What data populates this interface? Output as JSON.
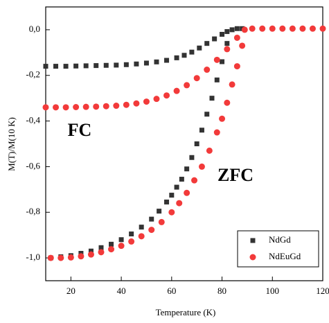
{
  "chart_data": {
    "type": "scatter",
    "x_label": "Temperature (K)",
    "y_label": "M(T)/M(10 K)",
    "annotations": [
      "FC",
      "ZFC"
    ],
    "xlim": [
      10,
      120
    ],
    "xticks": [
      20,
      40,
      60,
      80,
      100,
      120
    ],
    "ylim": [
      -1.1,
      0.1
    ],
    "yticks": [
      {
        "value": -1.0,
        "label": "-1,0"
      },
      {
        "value": -0.8,
        "label": "-0,8"
      },
      {
        "value": -0.6,
        "label": "-0,6"
      },
      {
        "value": -0.4,
        "label": "-0,4"
      },
      {
        "value": -0.2,
        "label": "-0,2"
      },
      {
        "value": 0.0,
        "label": "0,0"
      }
    ],
    "legend": "lower right",
    "series": [
      {
        "name": "NdGd",
        "color": "#333333",
        "marker": "square",
        "x": [
          10,
          14,
          18,
          22,
          26,
          30,
          34,
          38,
          42,
          46,
          50,
          54,
          58,
          62,
          65,
          68,
          71,
          74,
          77,
          80,
          82,
          84,
          86,
          88,
          12,
          16,
          20,
          24,
          28,
          32,
          36,
          40,
          44,
          48,
          52,
          55,
          58,
          60,
          62,
          64,
          66,
          68,
          70,
          72,
          74,
          76,
          78,
          80,
          82
        ],
        "values": [
          -0.16,
          -0.16,
          -0.16,
          -0.159,
          -0.158,
          -0.157,
          -0.156,
          -0.155,
          -0.153,
          -0.15,
          -0.146,
          -0.141,
          -0.134,
          -0.123,
          -0.112,
          -0.098,
          -0.08,
          -0.06,
          -0.04,
          -0.02,
          -0.008,
          0,
          0.005,
          0.005,
          -1.0,
          -0.995,
          -0.99,
          -0.98,
          -0.97,
          -0.955,
          -0.94,
          -0.92,
          -0.895,
          -0.865,
          -0.83,
          -0.795,
          -0.755,
          -0.725,
          -0.69,
          -0.655,
          -0.61,
          -0.56,
          -0.5,
          -0.44,
          -0.37,
          -0.3,
          -0.22,
          -0.14,
          -0.06
        ]
      },
      {
        "name": "NdEuGd",
        "color": "#f23a3a",
        "marker": "circle",
        "x": [
          10,
          14,
          18,
          22,
          26,
          30,
          34,
          38,
          42,
          46,
          50,
          54,
          58,
          62,
          66,
          70,
          74,
          78,
          82,
          86,
          89,
          92,
          96,
          100,
          104,
          108,
          112,
          116,
          120,
          12,
          16,
          20,
          24,
          28,
          32,
          36,
          40,
          44,
          48,
          52,
          56,
          60,
          63,
          66,
          69,
          72,
          75,
          78,
          80,
          82,
          84,
          86,
          88
        ],
        "values": [
          -0.34,
          -0.34,
          -0.34,
          -0.339,
          -0.338,
          -0.337,
          -0.335,
          -0.333,
          -0.329,
          -0.323,
          -0.315,
          -0.303,
          -0.288,
          -0.268,
          -0.243,
          -0.212,
          -0.175,
          -0.132,
          -0.085,
          -0.035,
          0,
          0.005,
          0.005,
          0.005,
          0.005,
          0.005,
          0.005,
          0.005,
          0.005,
          -1.0,
          -1.0,
          -0.998,
          -0.993,
          -0.985,
          -0.975,
          -0.962,
          -0.947,
          -0.928,
          -0.905,
          -0.877,
          -0.843,
          -0.8,
          -0.76,
          -0.715,
          -0.66,
          -0.6,
          -0.53,
          -0.45,
          -0.39,
          -0.32,
          -0.24,
          -0.16,
          -0.07
        ]
      }
    ]
  }
}
